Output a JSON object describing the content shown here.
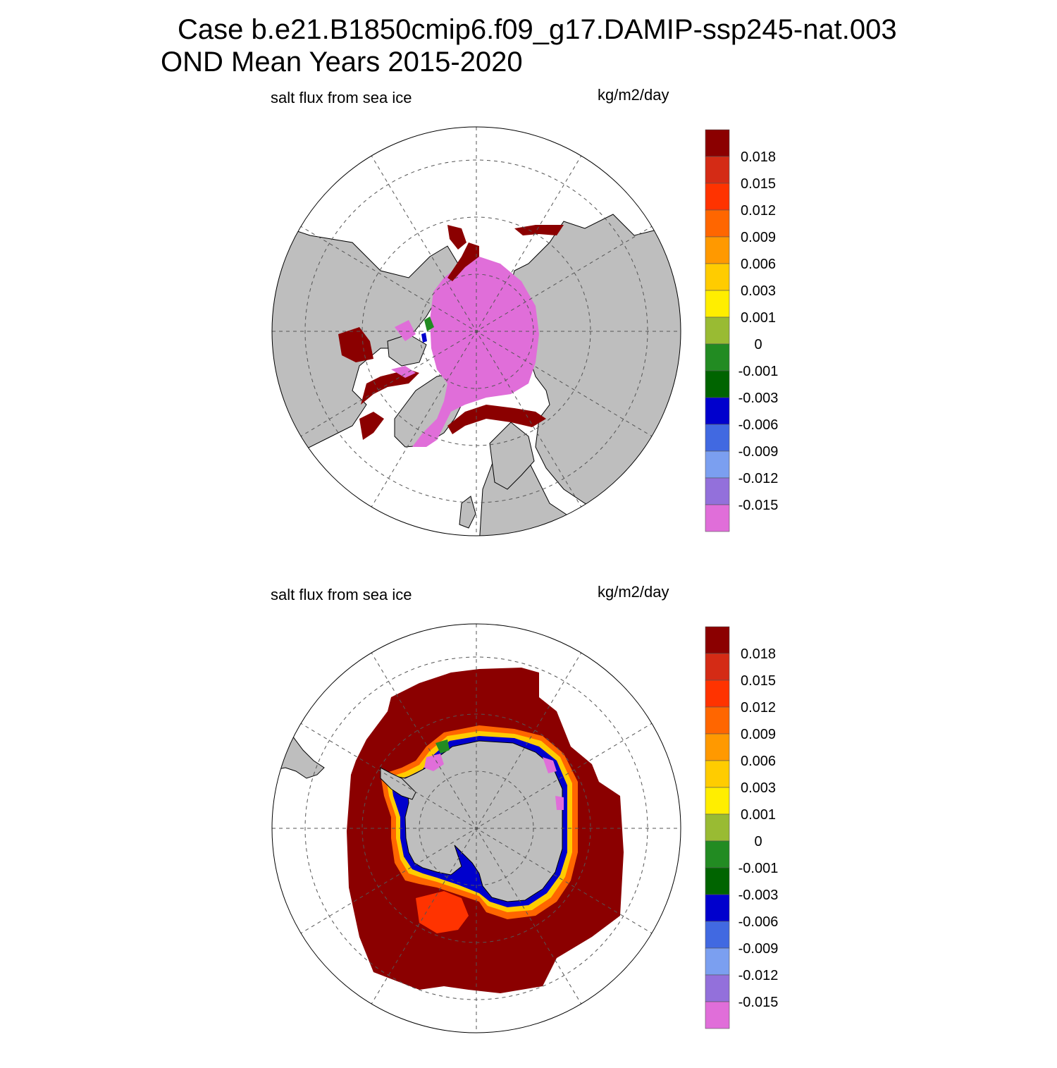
{
  "title_line1": "Case b.e21.B1850cmip6.f09_g17.DAMIP-ssp245-nat.003",
  "title_line2": "OND Mean   Years 2015-2020",
  "panels": [
    {
      "id": "arctic",
      "left_label": "salt flux from sea ice",
      "right_label": "kg/m2/day",
      "hemisphere": "north"
    },
    {
      "id": "antarctic",
      "left_label": "salt flux from sea ice",
      "right_label": "kg/m2/day",
      "hemisphere": "south"
    }
  ],
  "colorbar": {
    "tick_labels": [
      "0.018",
      "0.015",
      "0.012",
      "0.009",
      "0.006",
      "0.003",
      "0.001",
      "0",
      "-0.001",
      "-0.003",
      "-0.006",
      "-0.009",
      "-0.012",
      "-0.015"
    ],
    "colors": [
      "#8b0000",
      "#d42b15",
      "#ff3300",
      "#ff6600",
      "#ff9900",
      "#ffcc00",
      "#ffee00",
      "#99bb33",
      "#228b22",
      "#006400",
      "#0000cd",
      "#4169e1",
      "#7b9ff0",
      "#9370db",
      "#e06ed9"
    ]
  },
  "colors": {
    "land": "#bebebe",
    "ocean": "#ffffff",
    "grid": "#555555"
  }
}
